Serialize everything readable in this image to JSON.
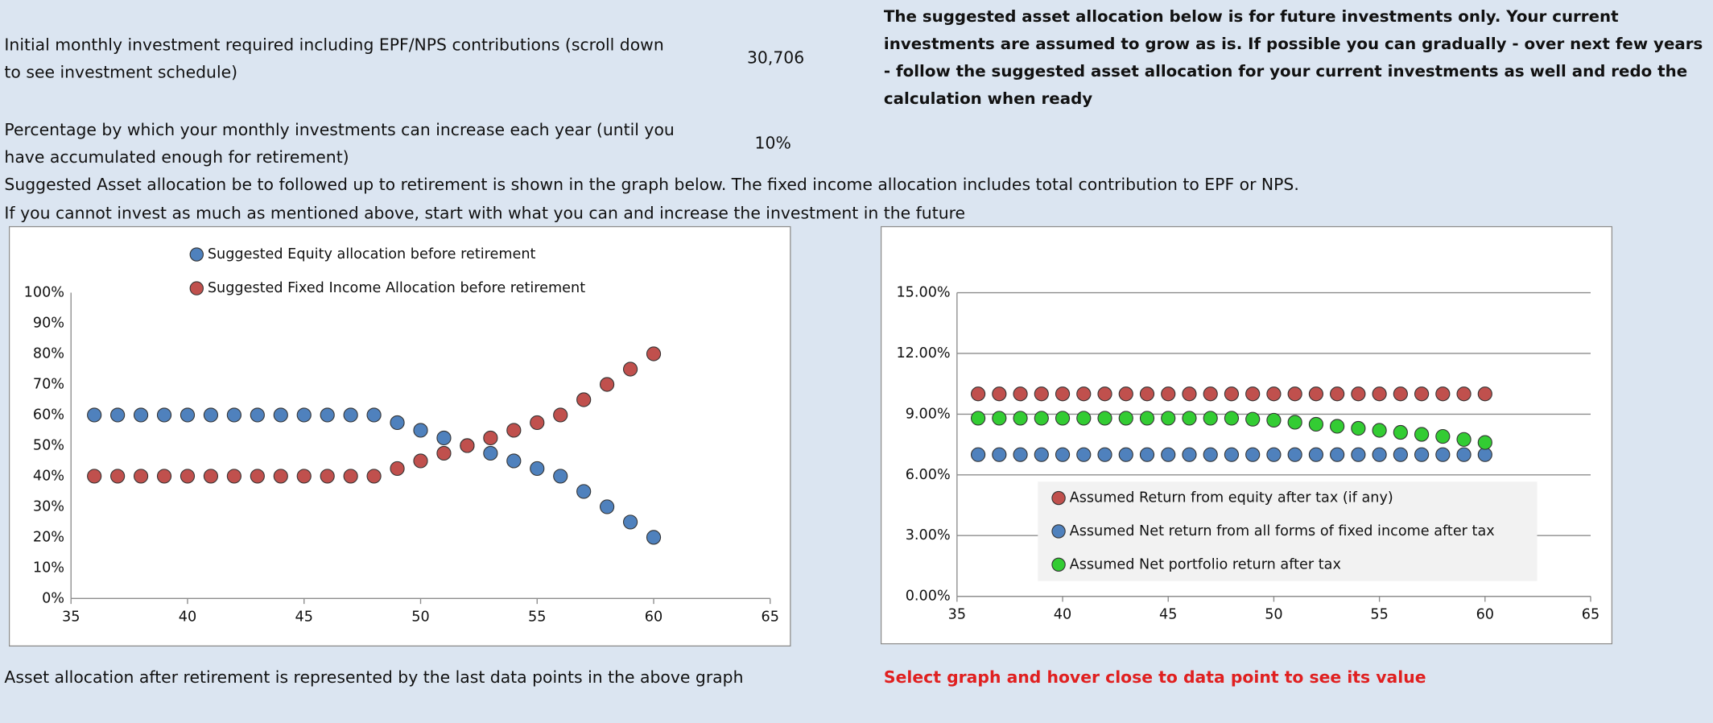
{
  "inputs": [
    {
      "label": "Initial monthly investment required including EPF/NPS contributions (scroll down to see investment schedule)",
      "value": "30,706"
    },
    {
      "label": "Percentage by which your monthly investments can increase each year (until you have accumulated enough for retirement)",
      "value": "10%"
    }
  ],
  "note": "The suggested asset allocation below is for future investments only. Your current investments are assumed to grow as is. If possible you can gradually - over next few years - follow the suggested asset allocation for your current investments as well and redo the calculation when ready",
  "description": [
    "Suggested Asset allocation be to followed up to retirement is shown in the graph below. The fixed income allocation includes total contribution to EPF or NPS.",
    "If you cannot invest as much as mentioned above, start with what you can and increase the investment in the future"
  ],
  "footer_left": "Asset allocation after retirement is represented by the last data points in the above graph",
  "footer_right": "Select graph and hover close to data point to see its value",
  "chart_data": [
    {
      "type": "scatter",
      "x": [
        36,
        37,
        38,
        39,
        40,
        41,
        42,
        43,
        44,
        45,
        46,
        47,
        48,
        49,
        50,
        51,
        52,
        53,
        54,
        55,
        56,
        57,
        58,
        59,
        60
      ],
      "series": [
        {
          "name": "Suggested Equity allocation before retirement",
          "color": "#4f81bd",
          "values": [
            60,
            60,
            60,
            60,
            60,
            60,
            60,
            60,
            60,
            60,
            60,
            60,
            60,
            57.5,
            55,
            52.5,
            50,
            47.5,
            45,
            42.5,
            40,
            35,
            30,
            25,
            20
          ]
        },
        {
          "name": "Suggested Fixed Income Allocation before retirement",
          "color": "#c0504d",
          "values": [
            40,
            40,
            40,
            40,
            40,
            40,
            40,
            40,
            40,
            40,
            40,
            40,
            40,
            42.5,
            45,
            47.5,
            50,
            52.5,
            55,
            57.5,
            60,
            65,
            70,
            75,
            80
          ]
        }
      ],
      "xlim": [
        35,
        65
      ],
      "xticks": [
        35,
        40,
        45,
        50,
        55,
        60,
        65
      ],
      "ylim": [
        0,
        100
      ],
      "yticks": [
        {
          "value": 0,
          "label": "0%"
        },
        {
          "value": 10,
          "label": "10%"
        },
        {
          "value": 20,
          "label": "20%"
        },
        {
          "value": 30,
          "label": "30%"
        },
        {
          "value": 40,
          "label": "40%"
        },
        {
          "value": 50,
          "label": "50%"
        },
        {
          "value": 60,
          "label": "60%"
        },
        {
          "value": 70,
          "label": "70%"
        },
        {
          "value": 80,
          "label": "80%"
        },
        {
          "value": 90,
          "label": "90%"
        },
        {
          "value": 100,
          "label": "100%"
        }
      ],
      "grid": false,
      "legend": "top"
    },
    {
      "type": "scatter",
      "x": [
        36,
        37,
        38,
        39,
        40,
        41,
        42,
        43,
        44,
        45,
        46,
        47,
        48,
        49,
        50,
        51,
        52,
        53,
        54,
        55,
        56,
        57,
        58,
        59,
        60
      ],
      "series": [
        {
          "name": "Assumed Return from equity after tax (if any)",
          "color": "#c0504d",
          "values": [
            10,
            10,
            10,
            10,
            10,
            10,
            10,
            10,
            10,
            10,
            10,
            10,
            10,
            10,
            10,
            10,
            10,
            10,
            10,
            10,
            10,
            10,
            10,
            10,
            10
          ]
        },
        {
          "name": "Assumed Net return from all forms of fixed income after tax",
          "color": "#4f81bd",
          "values": [
            7,
            7,
            7,
            7,
            7,
            7,
            7,
            7,
            7,
            7,
            7,
            7,
            7,
            7,
            7,
            7,
            7,
            7,
            7,
            7,
            7,
            7,
            7,
            7,
            7
          ]
        },
        {
          "name": "Assumed Net portfolio return after tax",
          "color": "#33cc33",
          "values": [
            8.8,
            8.8,
            8.8,
            8.8,
            8.8,
            8.8,
            8.8,
            8.8,
            8.8,
            8.8,
            8.8,
            8.8,
            8.8,
            8.75,
            8.7,
            8.6,
            8.5,
            8.4,
            8.3,
            8.2,
            8.1,
            8.0,
            7.9,
            7.75,
            7.6
          ]
        }
      ],
      "xlim": [
        35,
        65
      ],
      "xticks": [
        35,
        40,
        45,
        50,
        55,
        60,
        65
      ],
      "ylim": [
        0,
        15
      ],
      "yticks": [
        {
          "value": 0,
          "label": "0.00%"
        },
        {
          "value": 3,
          "label": "3.00%"
        },
        {
          "value": 6,
          "label": "6.00%"
        },
        {
          "value": 9,
          "label": "9.00%"
        },
        {
          "value": 12,
          "label": "12.00%"
        },
        {
          "value": 15,
          "label": "15.00%"
        }
      ],
      "grid": true,
      "legend": "inside-bottom"
    }
  ]
}
